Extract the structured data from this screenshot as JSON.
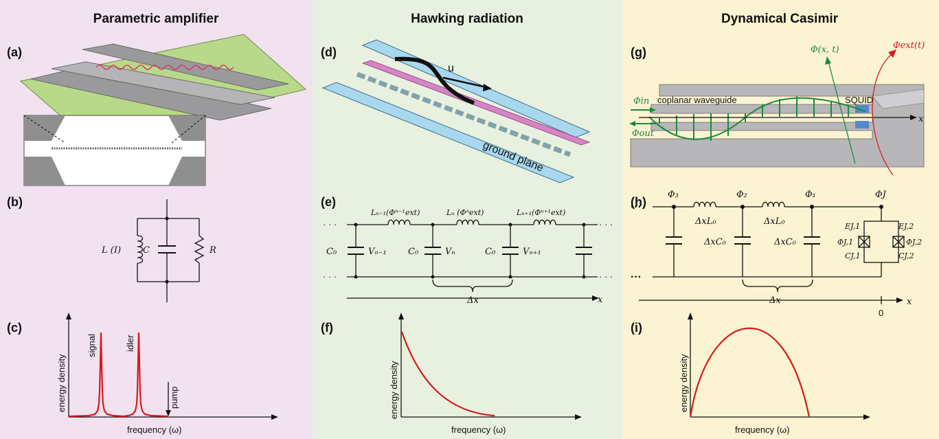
{
  "columns": [
    {
      "title": "Parametric amplifier",
      "bg": "#f2e2ef"
    },
    {
      "title": "Hawking radiation",
      "bg": "#e8f0df"
    },
    {
      "title": "Dynamical Casimir",
      "bg": "#fbf3d2"
    }
  ],
  "panels": {
    "a": "(a)",
    "b": "(b)",
    "c": "(c)",
    "d": "(d)",
    "e": "(e)",
    "f": "(f)",
    "g": "(g)",
    "h": "(h)",
    "i": "(i)"
  },
  "panel_b": {
    "L": "L (I)",
    "C": "C",
    "R": "R"
  },
  "panel_c": {
    "ylabel": "energy density",
    "xlabel": "frequency (ω)",
    "peak_signal": "signal",
    "peak_idler": "idler",
    "pump": "pump"
  },
  "panel_d": {
    "velocity": "u",
    "ground": "ground plane"
  },
  "panel_e": {
    "L_prev": "Lₙ₋₁(Φⁿ⁻¹ext)",
    "L_cur": "Lₙ (Φⁿext)",
    "L_next": "Lₙ₊₁(Φⁿ⁺¹ext)",
    "C0": "C₀",
    "V_prev": "Vₙ₋₁",
    "V_cur": "Vₙ",
    "V_next": "Vₙ₊₁",
    "dx": "Δx",
    "x": "x",
    "dots": "· · ·"
  },
  "panel_f": {
    "ylabel": "energy density",
    "xlabel": "frequency (ω)"
  },
  "panel_g": {
    "phi_xt": "Φ(x, t)",
    "phi_ext": "Φext(t)",
    "phi_in": "Φin",
    "phi_out": "Φout",
    "waveguide": "coplanar waveguide",
    "squid": "SQUID",
    "x": "x"
  },
  "panel_h": {
    "phi3": "Φ₃",
    "phi2": "Φ₂",
    "phi1": "Φ₁",
    "phiJ": "ΦJ",
    "dxL0a": "ΔxL₀",
    "dxL0b": "ΔxL₀",
    "dxC0a": "ΔxC₀",
    "dxC0b": "ΔxC₀",
    "EJ1": "EJ,1",
    "EJ2": "EJ,2",
    "PhiJ1": "ΦJ,1",
    "PhiJ2": "ΦJ,2",
    "CJ1": "CJ,1",
    "CJ2": "CJ,2",
    "dx": "Δx",
    "x": "x",
    "zero": "0",
    "dots": "···"
  },
  "panel_i": {
    "ylabel": "energy density",
    "xlabel": "frequency (ω)"
  },
  "colors": {
    "curve": "#d7191f",
    "field": "#1a8a3a",
    "substrate": "#b9d98a",
    "strip": "#a8d8ee",
    "metal": "#b7b7b9"
  }
}
